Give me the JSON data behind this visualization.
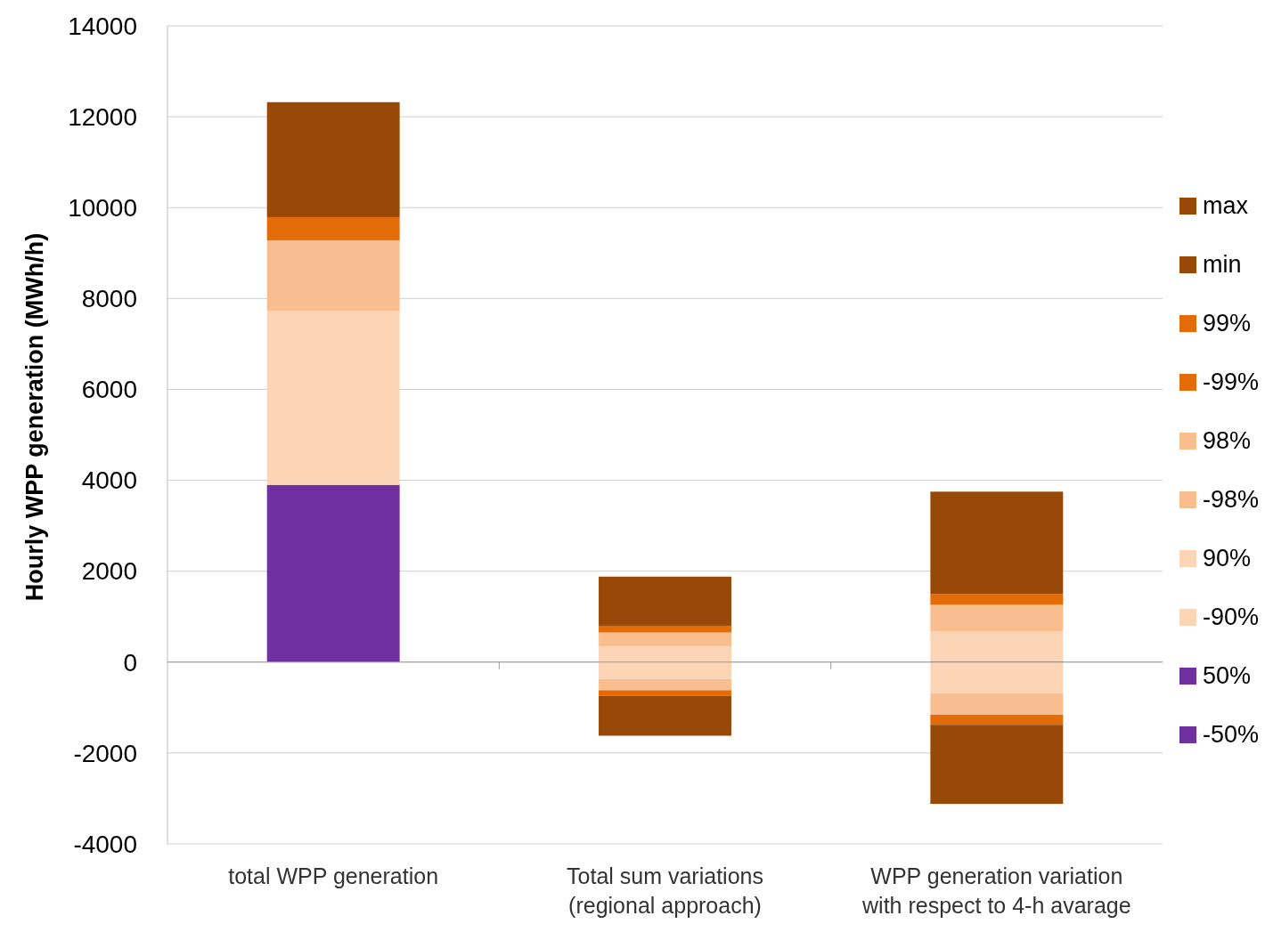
{
  "chart_data": {
    "type": "bar",
    "stacked": true,
    "ylabel": "Hourly WPP generation (MWh/h)",
    "categories": [
      "total WPP generation",
      "Total sum variations (regional approach)",
      "WPP generation variation with respect to 4-h avarage"
    ],
    "series": [
      {
        "name": "-50%",
        "color": "#7030a0",
        "values": [
          0,
          0,
          0
        ]
      },
      {
        "name": "50%",
        "color": "#7030a0",
        "values": [
          3900,
          0,
          20
        ]
      },
      {
        "name": "-90%",
        "color": "#fbd5b5",
        "values": [
          0,
          -370,
          -690
        ]
      },
      {
        "name": "90%",
        "color": "#fbd5b5",
        "values": [
          3820,
          350,
          650
        ]
      },
      {
        "name": "-98%",
        "color": "#f9be8f",
        "values": [
          0,
          -250,
          -470
        ]
      },
      {
        "name": "98%",
        "color": "#f9be8f",
        "values": [
          1560,
          300,
          590
        ]
      },
      {
        "name": "-99%",
        "color": "#e36c09",
        "values": [
          0,
          -120,
          -220
        ]
      },
      {
        "name": "99%",
        "color": "#e36c09",
        "values": [
          510,
          150,
          240
        ]
      },
      {
        "name": "min",
        "color": "#984807",
        "values": [
          0,
          -880,
          -1740
        ]
      },
      {
        "name": "max",
        "color": "#984807",
        "values": [
          2530,
          1080,
          2250
        ]
      }
    ],
    "ylim": [
      -4000,
      14000
    ],
    "yticks": [
      -4000,
      -2000,
      0,
      2000,
      4000,
      6000,
      8000,
      10000,
      12000,
      14000
    ],
    "grid": "y",
    "legend": "right"
  }
}
